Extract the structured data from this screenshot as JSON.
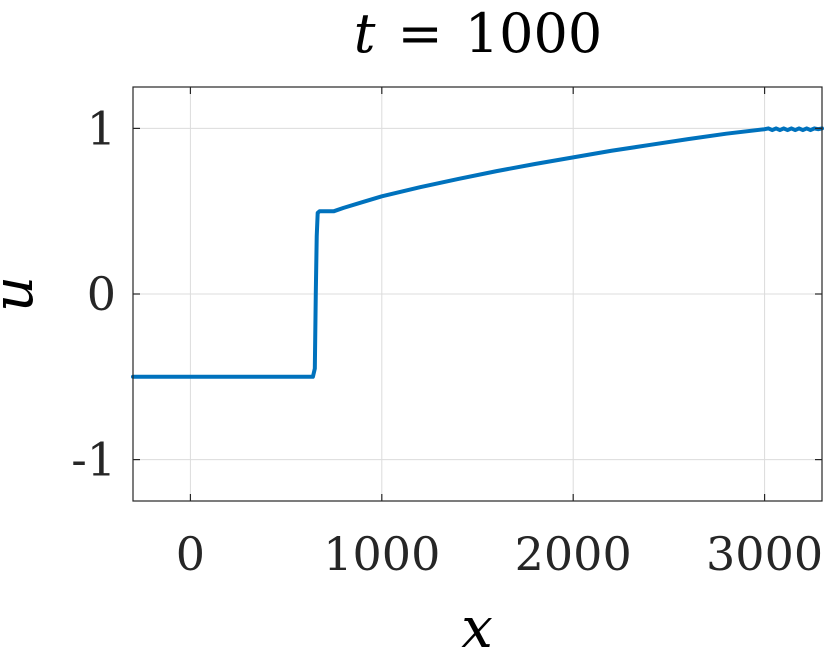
{
  "chart_data": {
    "type": "line",
    "title": {
      "variable": "t",
      "operator": "=",
      "value": "1000"
    },
    "xlabel": "x",
    "ylabel": "u",
    "xlim": [
      -300,
      3300
    ],
    "ylim": [
      -1.25,
      1.25
    ],
    "xticks": [
      0,
      1000,
      2000,
      3000
    ],
    "xtick_labels": [
      "0",
      "1000",
      "2000",
      "3000"
    ],
    "yticks": [
      -1,
      0,
      1
    ],
    "ytick_labels": [
      "-1",
      "0",
      "1"
    ],
    "grid": true,
    "series": [
      {
        "color": "#0072BD",
        "x": [
          -300,
          0,
          300,
          640,
          650,
          655,
          660,
          665,
          675,
          700,
          720,
          750,
          800,
          900,
          1000,
          1200,
          1400,
          1600,
          1800,
          2000,
          2200,
          2400,
          2600,
          2800,
          3000,
          3020,
          3040,
          3060,
          3080,
          3100,
          3120,
          3140,
          3160,
          3180,
          3200,
          3220,
          3240,
          3260,
          3280,
          3300
        ],
        "y": [
          -0.5,
          -0.5,
          -0.5,
          -0.5,
          -0.45,
          0.0,
          0.35,
          0.49,
          0.5,
          0.5,
          0.5,
          0.5,
          0.52,
          0.555,
          0.59,
          0.645,
          0.695,
          0.742,
          0.785,
          0.825,
          0.865,
          0.9,
          0.935,
          0.968,
          0.995,
          1.0,
          0.99,
          1.0,
          0.99,
          1.0,
          0.99,
          1.0,
          0.99,
          1.0,
          0.99,
          1.0,
          0.99,
          1.0,
          0.995,
          1.0
        ]
      }
    ]
  },
  "colors": {
    "series": "#0072BD",
    "grid": "#dcdcdc",
    "axis": "#262626",
    "background": "#ffffff"
  }
}
